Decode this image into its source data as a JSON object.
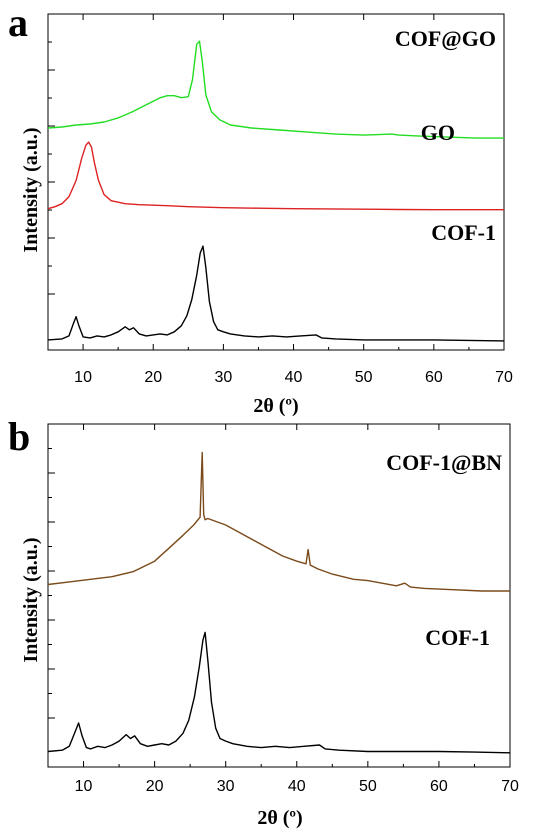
{
  "chart_data": [
    {
      "type": "line",
      "panel_letter": "a",
      "xlabel": "2θ (º)",
      "ylabel": "Intensity (a.u.)",
      "xlim": [
        5,
        70
      ],
      "xticks": [
        10,
        20,
        30,
        40,
        50,
        60,
        70
      ],
      "y_ticks_labeled": false,
      "grid": false,
      "legend": "none",
      "series": [
        {
          "name": "COF@GO",
          "color": "#22dd22",
          "offset": 2.0,
          "x": [
            5,
            7,
            9,
            11,
            13,
            15,
            17,
            19,
            21,
            22,
            23,
            24,
            25,
            25.6,
            26.2,
            26.6,
            27.0,
            27.5,
            28.3,
            29.5,
            31,
            34,
            38,
            42,
            46,
            50,
            54,
            55,
            58,
            62,
            66,
            70
          ],
          "values": [
            0.12,
            0.13,
            0.15,
            0.16,
            0.18,
            0.22,
            0.28,
            0.35,
            0.42,
            0.44,
            0.44,
            0.42,
            0.43,
            0.6,
            0.95,
            0.98,
            0.78,
            0.45,
            0.28,
            0.2,
            0.15,
            0.12,
            0.1,
            0.08,
            0.06,
            0.05,
            0.06,
            0.05,
            0.04,
            0.03,
            0.02,
            0.02
          ]
        },
        {
          "name": "GO",
          "color": "#dd2222",
          "offset": 1.3,
          "x": [
            5,
            6,
            7,
            8,
            9,
            9.8,
            10.4,
            10.8,
            11.2,
            11.6,
            12.2,
            13,
            14,
            16,
            18,
            20,
            22,
            25,
            30,
            35,
            40,
            45,
            50,
            55,
            60,
            65,
            70
          ],
          "values": [
            0.02,
            0.04,
            0.07,
            0.14,
            0.3,
            0.52,
            0.65,
            0.68,
            0.63,
            0.48,
            0.3,
            0.16,
            0.1,
            0.07,
            0.06,
            0.055,
            0.05,
            0.04,
            0.03,
            0.025,
            0.02,
            0.018,
            0.015,
            0.012,
            0.01,
            0.01,
            0.01
          ]
        },
        {
          "name": "COF-1",
          "color": "#000000",
          "offset": 0.0,
          "x": [
            5,
            7,
            8,
            8.6,
            9.0,
            9.4,
            10.0,
            11,
            12,
            13,
            14,
            15,
            16,
            16.6,
            17.2,
            18,
            19,
            20,
            21,
            22,
            23,
            24,
            24.8,
            25.5,
            26.2,
            26.7,
            27.1,
            27.5,
            28.0,
            28.6,
            29.2,
            30,
            31,
            33,
            35,
            37,
            39,
            41,
            43.2,
            44,
            46,
            50,
            55,
            60,
            65,
            70
          ],
          "values": [
            0.02,
            0.03,
            0.06,
            0.18,
            0.25,
            0.16,
            0.05,
            0.04,
            0.06,
            0.05,
            0.07,
            0.1,
            0.15,
            0.12,
            0.14,
            0.08,
            0.06,
            0.07,
            0.08,
            0.07,
            0.1,
            0.16,
            0.26,
            0.42,
            0.66,
            0.88,
            0.95,
            0.74,
            0.4,
            0.2,
            0.12,
            0.1,
            0.08,
            0.06,
            0.05,
            0.06,
            0.05,
            0.06,
            0.07,
            0.04,
            0.03,
            0.02,
            0.02,
            0.02,
            0.015,
            0.01
          ]
        }
      ]
    },
    {
      "type": "line",
      "panel_letter": "b",
      "xlabel": "2θ (º)",
      "ylabel": "Intensity (a.u.)",
      "xlim": [
        5,
        70
      ],
      "xticks": [
        10,
        20,
        30,
        40,
        50,
        60,
        70
      ],
      "y_ticks_labeled": false,
      "grid": false,
      "legend": "none",
      "series": [
        {
          "name": "COF-1@BN",
          "color": "#7a4a1a",
          "offset": 1.25,
          "x": [
            5,
            8,
            11,
            14,
            17,
            20,
            22,
            24,
            25.5,
            26.4,
            26.7,
            26.9,
            27.1,
            27.5,
            28.5,
            30,
            32,
            34,
            36,
            38,
            40,
            41.3,
            41.6,
            41.9,
            43,
            45,
            48,
            50,
            52,
            54,
            55.2,
            56,
            58,
            62,
            66,
            70
          ],
          "values": [
            0.06,
            0.08,
            0.1,
            0.12,
            0.16,
            0.24,
            0.34,
            0.44,
            0.52,
            0.58,
            1.08,
            0.6,
            0.56,
            0.57,
            0.55,
            0.52,
            0.46,
            0.4,
            0.34,
            0.28,
            0.24,
            0.22,
            0.33,
            0.21,
            0.18,
            0.14,
            0.1,
            0.09,
            0.07,
            0.05,
            0.07,
            0.04,
            0.03,
            0.02,
            0.01,
            0.01
          ]
        },
        {
          "name": "COF-1",
          "color": "#000000",
          "offset": 0.0,
          "x": [
            5,
            7,
            8,
            8.8,
            9.3,
            9.8,
            10.4,
            11,
            12,
            13,
            14,
            15,
            16,
            16.6,
            17.2,
            18,
            19,
            20,
            21,
            22,
            23,
            24,
            24.8,
            25.6,
            26.3,
            26.8,
            27.1,
            27.5,
            28.0,
            28.6,
            29.2,
            30,
            31,
            33,
            35,
            37,
            39,
            41,
            43.2,
            44,
            46,
            50,
            55,
            60,
            65,
            70
          ],
          "values": [
            0.02,
            0.03,
            0.06,
            0.17,
            0.24,
            0.14,
            0.05,
            0.04,
            0.06,
            0.05,
            0.07,
            0.1,
            0.15,
            0.12,
            0.14,
            0.08,
            0.06,
            0.07,
            0.08,
            0.07,
            0.1,
            0.16,
            0.26,
            0.44,
            0.68,
            0.88,
            0.94,
            0.72,
            0.4,
            0.2,
            0.12,
            0.1,
            0.08,
            0.06,
            0.05,
            0.06,
            0.05,
            0.06,
            0.07,
            0.04,
            0.03,
            0.02,
            0.02,
            0.02,
            0.015,
            0.01
          ]
        }
      ]
    }
  ]
}
